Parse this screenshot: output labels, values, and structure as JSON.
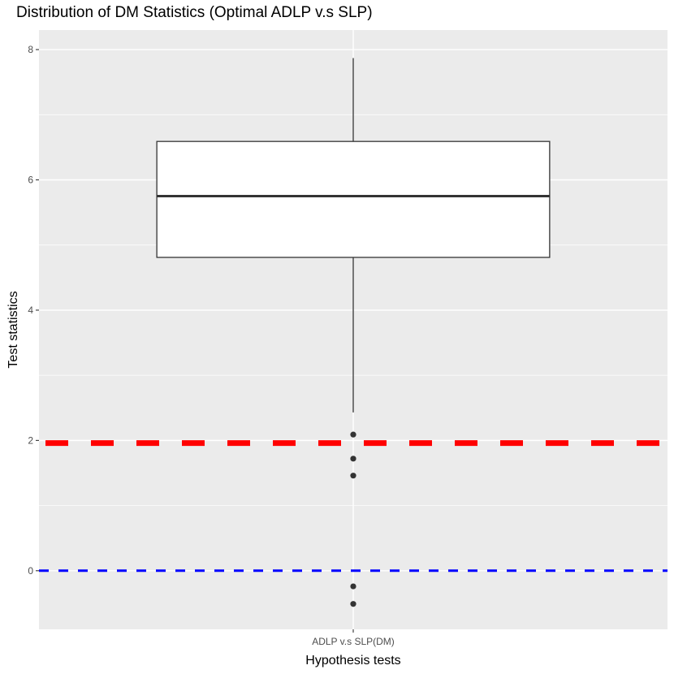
{
  "chart_data": {
    "type": "box",
    "title": "Distribution of DM Statistics (Optimal ADLP v.s SLP)",
    "xlabel": "Hypothesis tests",
    "ylabel": "Test statistics",
    "categories": [
      "ADLP v.s SLP(DM)"
    ],
    "ylim": [
      -0.9,
      8.3
    ],
    "yticks": [
      0,
      2,
      4,
      6,
      8
    ],
    "grid": true,
    "legend": "none",
    "boxes": [
      {
        "category": "ADLP v.s SLP(DM)",
        "whisker_low": 2.43,
        "q1": 4.81,
        "median": 5.75,
        "q3": 6.59,
        "whisker_high": 7.87,
        "outliers": [
          2.09,
          1.72,
          1.46,
          -0.24,
          -0.51
        ]
      }
    ],
    "reference_lines": [
      {
        "y": 1.96,
        "color": "#ff0000",
        "style": "dashed"
      },
      {
        "y": 0,
        "color": "#0000ff",
        "style": "dashed"
      }
    ],
    "colors": {
      "panel": "#ebebeb",
      "grid": "#ffffff",
      "box_fill": "#ffffff",
      "box_stroke": "#333333",
      "outlier": "#333333"
    }
  }
}
